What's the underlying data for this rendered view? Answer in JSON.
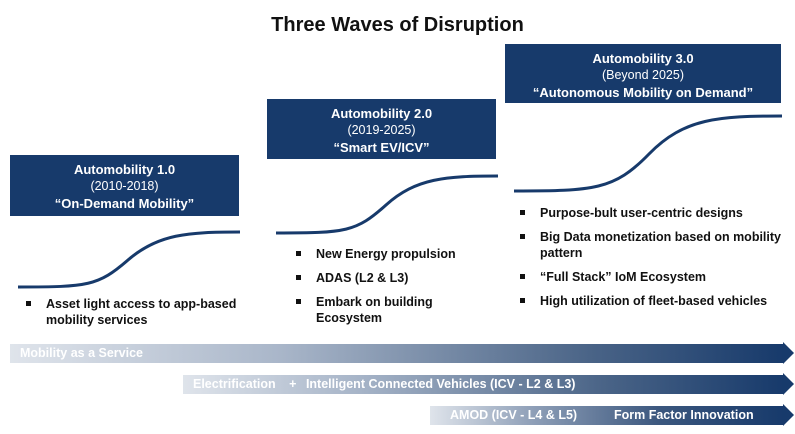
{
  "title": "Three Waves of Disruption",
  "colors": {
    "navy": "#173a6b",
    "band_light": "#dfe4eb"
  },
  "waves": [
    {
      "name": "Automobility 1.0",
      "period": "(2010-2018)",
      "tagline": "“On-Demand Mobility”",
      "bullets": [
        "Asset light access to app-based mobility services"
      ]
    },
    {
      "name": "Automobility 2.0",
      "period": "(2019-2025)",
      "tagline": "“Smart EV/ICV”",
      "bullets": [
        "New Energy propulsion",
        "ADAS (L2 & L3)",
        "Embark on building Ecosystem"
      ]
    },
    {
      "name": "Automobility 3.0",
      "period": "(Beyond 2025)",
      "tagline": "“Autonomous Mobility on Demand”",
      "bullets": [
        "Purpose-bult user-centric designs",
        "Big Data monetization based on mobility pattern",
        "“Full Stack” IoM Ecosystem",
        "High utilization of fleet-based vehicles"
      ]
    }
  ],
  "bands": {
    "maas": "Mobility as a Service",
    "electrification": "Electrification",
    "icv_sep": "+",
    "icv": "Intelligent Connected Vehicles (ICV - L2 & L3)",
    "amod": "AMOD (ICV - L4 & L5)",
    "form_factor": "Form Factor Innovation"
  }
}
